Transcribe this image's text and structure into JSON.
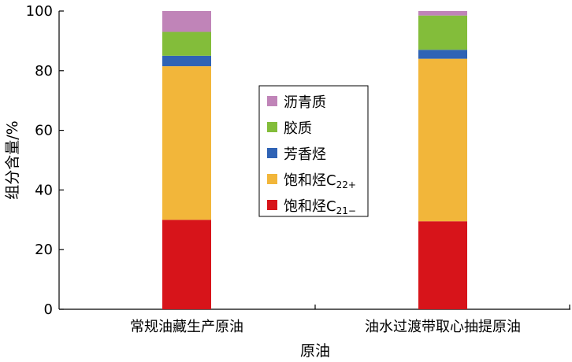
{
  "chart_data": {
    "type": "bar",
    "stacked": true,
    "categories": [
      "常规油藏生产原油",
      "油水过渡带取心抽提原油"
    ],
    "series": [
      {
        "name": "饱和烃C21−",
        "name_main": "饱和烃C",
        "name_sub": "21−",
        "values": [
          30,
          29.5
        ],
        "color": "#d7141a"
      },
      {
        "name": "饱和烃C22+",
        "name_main": "饱和烃C",
        "name_sub": "22+",
        "values": [
          51.5,
          54.5
        ],
        "color": "#f2b63a"
      },
      {
        "name": "芳香烃",
        "name_main": "芳香烃",
        "name_sub": "",
        "values": [
          3.5,
          3
        ],
        "color": "#2f63b5"
      },
      {
        "name": "胶质",
        "name_main": "胶质",
        "name_sub": "",
        "values": [
          8,
          11.5
        ],
        "color": "#83bd3a"
      },
      {
        "name": "沥青质",
        "name_main": "沥青质",
        "name_sub": "",
        "values": [
          7,
          1.5
        ],
        "color": "#c084b8"
      }
    ],
    "xlabel": "原油",
    "ylabel": "组分含量/%",
    "ylim": [
      0,
      100
    ],
    "yticks": [
      0,
      20,
      40,
      60,
      80,
      100
    ],
    "grid": false,
    "legend_position": "center"
  }
}
